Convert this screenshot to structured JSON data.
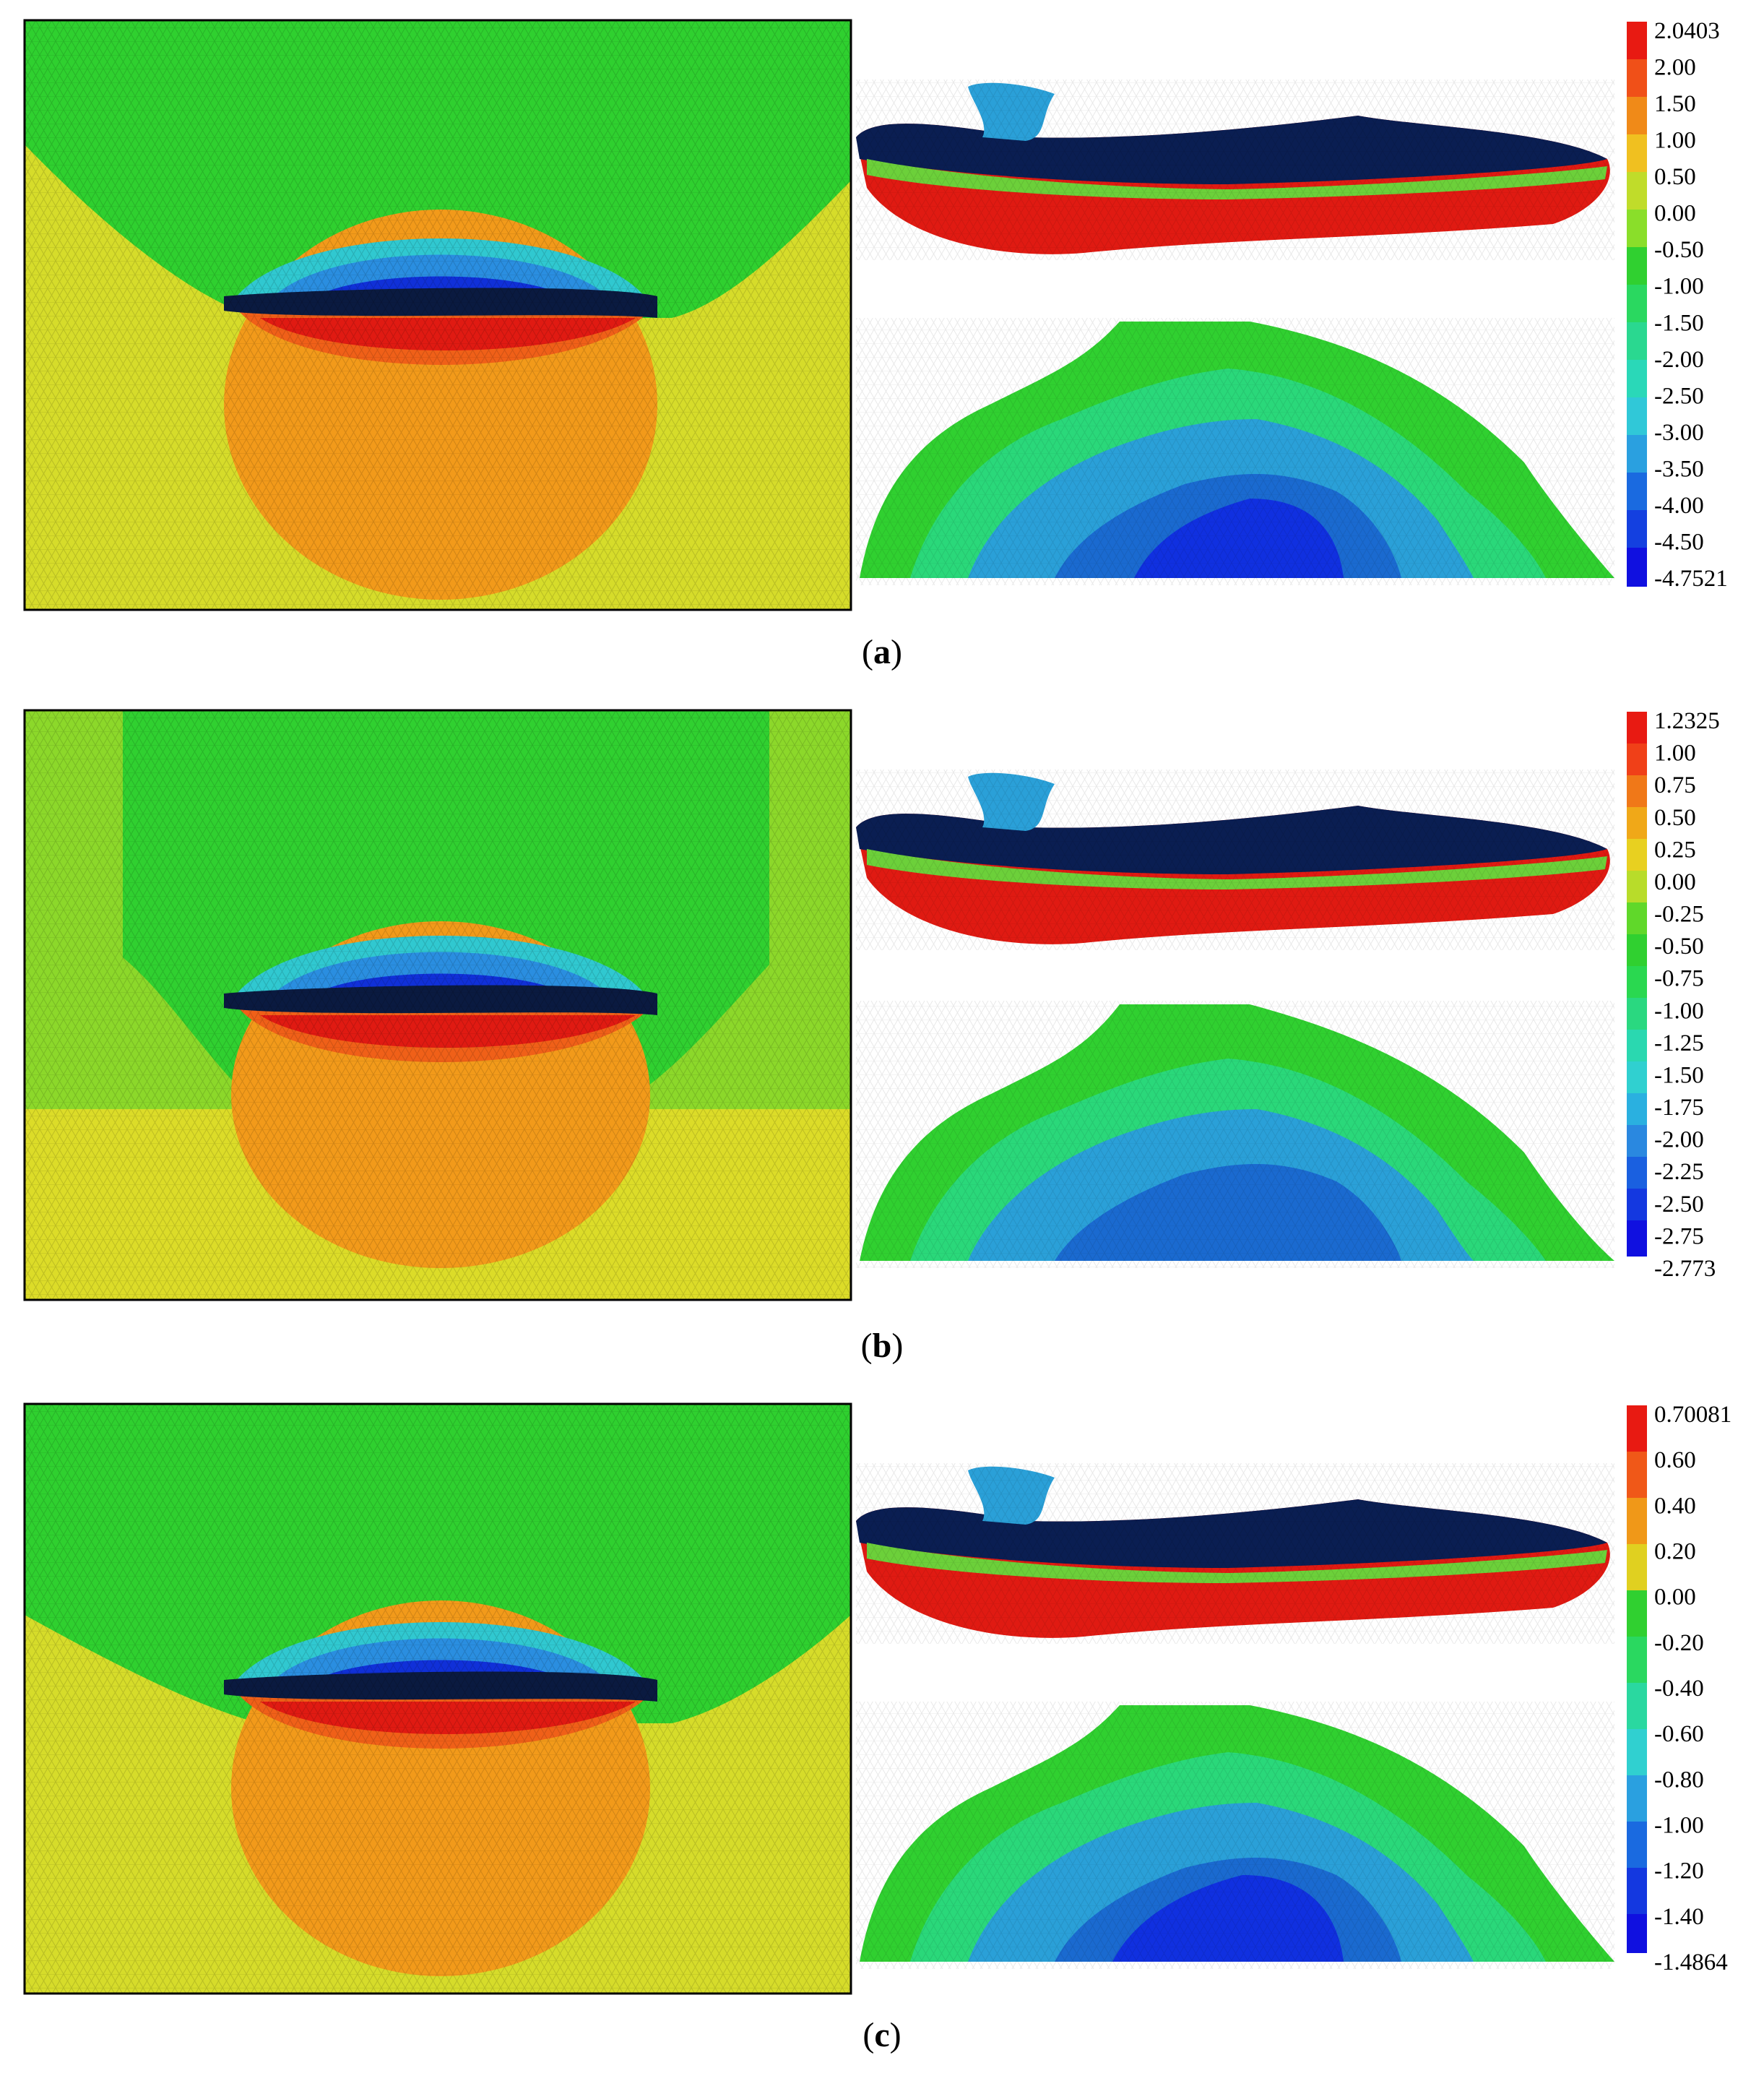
{
  "panels": [
    {
      "id": "a",
      "caption": {
        "open": "(",
        "letter": "a",
        "close": ")"
      },
      "legend": {
        "min": -4.7521,
        "max": 2.0403,
        "labels": [
          "2.0403",
          "2.00",
          "1.50",
          "1.00",
          "0.50",
          "0.00",
          "-0.50",
          "-1.00",
          "-1.50",
          "-2.00",
          "-2.50",
          "-3.00",
          "-3.50",
          "-4.00",
          "-4.50",
          "-4.7521"
        ]
      }
    },
    {
      "id": "b",
      "caption": {
        "open": "(",
        "letter": "b",
        "close": ")"
      },
      "legend": {
        "min": -2.773,
        "max": 1.2325,
        "labels": [
          "1.2325",
          "1.00",
          "0.75",
          "0.50",
          "0.25",
          "0.00",
          "-0.25",
          "-0.50",
          "-0.75",
          "-1.00",
          "-1.25",
          "-1.50",
          "-1.75",
          "-2.00",
          "-2.25",
          "-2.50",
          "-2.75",
          "-2.773"
        ]
      }
    },
    {
      "id": "c",
      "caption": {
        "open": "(",
        "letter": "c",
        "close": ")"
      },
      "legend": {
        "min": -1.4864,
        "max": 0.70081,
        "labels": [
          "0.70081",
          "0.60",
          "0.40",
          "0.20",
          "0.00",
          "-0.20",
          "-0.40",
          "-0.60",
          "-0.80",
          "-1.00",
          "-1.20",
          "-1.40",
          "-1.4864"
        ]
      }
    }
  ],
  "colors": {
    "dark_navy": "#061a4a",
    "blue": "#1030e0",
    "mid_blue": "#1a6ad0",
    "cyan_blue": "#2aa0d8",
    "cyan": "#30c8d0",
    "teal_green": "#2ad87a",
    "green": "#30d030",
    "yellow_green": "#b8dc2a",
    "yellow": "#dcdc28",
    "orange": "#f09018",
    "dark_orange": "#f06018",
    "red": "#e81a12"
  }
}
